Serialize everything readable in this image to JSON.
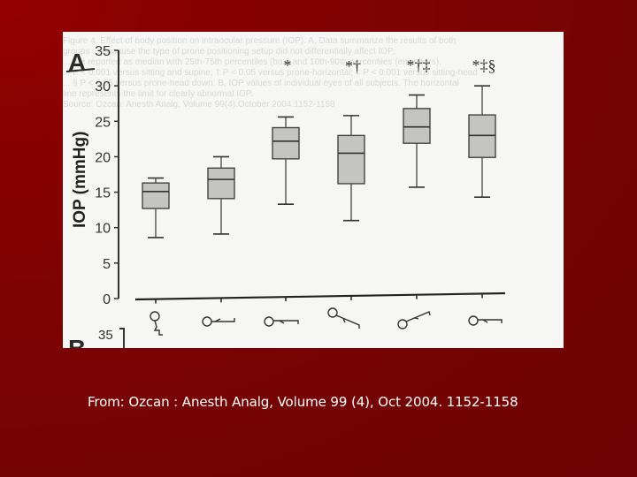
{
  "slide": {
    "caption": "From: Ozcan : Anesth Analg, Volume 99 (4), Oct 2004. 1152-1158",
    "background_color": "#780303",
    "caption_color": "#ffffff"
  },
  "figure": {
    "panel_label": "A",
    "next_panel_label": "B",
    "next_panel_tick": "35",
    "ghost_text_lines": [
      "Figure 4. Effect of body position on intraocular pressure (IOP). A, Data summarize the results of both",
      "groups ... because the type of prone positioning setup did not differentially affect IOP,",
      "... are reported as median with 25th-75th percentiles (box) and 10th-90th percentiles (error bars).",
      "... P < 0.001 versus sitting and supine; † P < 0.05 versus prone-horizontal; ‡ P < 0.001 versus sitting-head",
      "... § P < 0.05 versus prone-head down. B, IOP values of individual eyes of all subjects. The horizontal",
      "line represents the limit for clearly abnormal IOP.",
      "Source: Ozcan: Anesth Analg, Volume 99(4).October 2004.1152-1158"
    ]
  },
  "chart_data": {
    "type": "box",
    "title": "",
    "xlabel": "",
    "ylabel": "IOP (mmHg)",
    "ylim": [
      0,
      35
    ],
    "yticks": [
      0,
      5,
      10,
      15,
      20,
      25,
      30,
      35
    ],
    "grid": false,
    "legend": null,
    "categories": [
      "sitting",
      "supine",
      "prone-horizontal",
      "prone-head down",
      "prone-head up",
      "supine (end)"
    ],
    "category_icons": [
      "sitting-figure-icon",
      "supine-figure-icon",
      "prone-horizontal-figure-icon",
      "prone-head-down-figure-icon",
      "prone-head-up-figure-icon",
      "supine-end-figure-icon"
    ],
    "series": [
      {
        "name": "IOP",
        "stats": [
          {
            "whisker_low": 8.6,
            "q1": 12.7,
            "median": 15.1,
            "q3": 16.3,
            "whisker_high": 17.0,
            "significance": ""
          },
          {
            "whisker_low": 9.1,
            "q1": 14.1,
            "median": 16.8,
            "q3": 18.4,
            "whisker_high": 20.0,
            "significance": ""
          },
          {
            "whisker_low": 13.3,
            "q1": 19.7,
            "median": 22.2,
            "q3": 24.1,
            "whisker_high": 25.6,
            "significance": "*"
          },
          {
            "whisker_low": 11.0,
            "q1": 16.2,
            "median": 20.5,
            "q3": 23.0,
            "whisker_high": 25.8,
            "significance": "*†"
          },
          {
            "whisker_low": 15.7,
            "q1": 21.9,
            "median": 24.2,
            "q3": 26.8,
            "whisker_high": 28.7,
            "significance": "*†‡"
          },
          {
            "whisker_low": 14.3,
            "q1": 19.9,
            "median": 23.0,
            "q3": 25.9,
            "whisker_high": 30.0,
            "significance": "*‡§"
          }
        ]
      }
    ],
    "annotations": [
      "* P<0.001 vs sitting and supine",
      "† vs prone-horizontal",
      "‡ vs sitting-head",
      "§ vs prone-head down"
    ]
  }
}
